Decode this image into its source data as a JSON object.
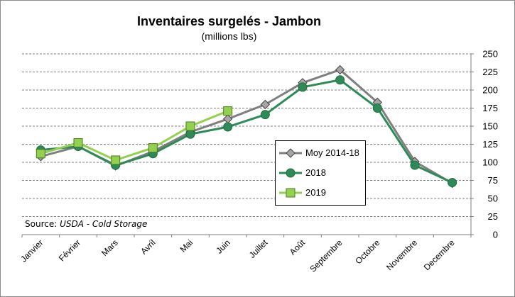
{
  "chart_data": {
    "type": "line",
    "title": "Inventaires surgelés - Jambon",
    "subtitle": "(millions lbs)",
    "categories": [
      "Janvier",
      "Février",
      "Mars",
      "Avril",
      "Mai",
      "Juin",
      "Juillet",
      "Août",
      "Septembre",
      "Octobre",
      "Novembre",
      "Decembre"
    ],
    "ylim": [
      0,
      250
    ],
    "yticks": [
      0,
      25,
      50,
      75,
      100,
      125,
      150,
      175,
      200,
      225,
      250
    ],
    "grid": true,
    "legend_position": "center-right",
    "series": [
      {
        "name": "Moy 2014-18",
        "color": "#7f7f7f",
        "marker": "diamond",
        "values": [
          108,
          122,
          95,
          115,
          142,
          160,
          180,
          210,
          228,
          183,
          101,
          71
        ]
      },
      {
        "name": "2018",
        "color": "#2e8b57",
        "marker": "circle",
        "values": [
          117,
          122,
          96,
          112,
          139,
          149,
          166,
          204,
          214,
          175,
          96,
          72
        ]
      },
      {
        "name": "2019",
        "color": "#92d050",
        "marker": "square",
        "values": [
          112,
          127,
          103,
          120,
          150,
          171,
          null,
          null,
          null,
          null,
          null,
          null
        ]
      }
    ]
  },
  "source": {
    "prefix": "Source: ",
    "text": "USDA - Cold Storage"
  }
}
